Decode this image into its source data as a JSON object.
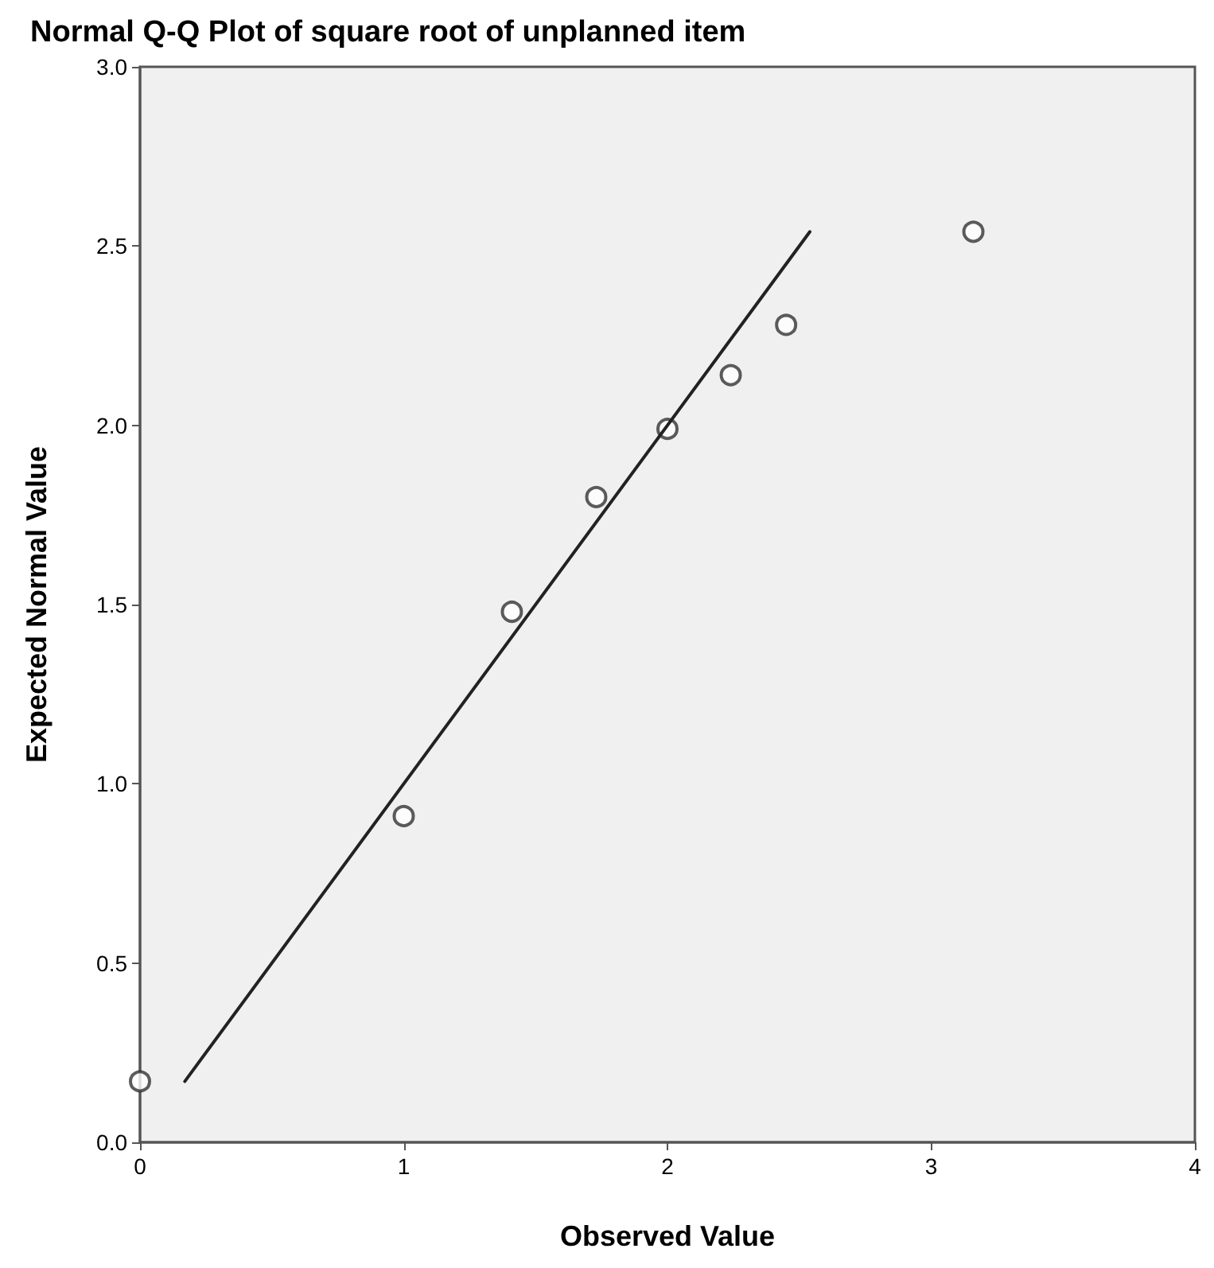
{
  "chart_data": {
    "type": "scatter",
    "title": "Normal Q-Q Plot of square root of unplanned item",
    "xlabel": "Observed Value",
    "ylabel": "Expected Normal Value",
    "xlim": [
      0,
      4
    ],
    "xticks": [
      0,
      1,
      2,
      3,
      4
    ],
    "ylim": [
      0,
      3
    ],
    "yticks": [
      {
        "value": 0,
        "label": "0.0"
      },
      {
        "value": 0.5,
        "label": "0.5"
      },
      {
        "value": 1,
        "label": "1.0"
      },
      {
        "value": 1.5,
        "label": "1.5"
      },
      {
        "value": 2,
        "label": "2.0"
      },
      {
        "value": 2.5,
        "label": "2.5"
      },
      {
        "value": 3,
        "label": "3.0"
      }
    ],
    "grid": false,
    "marker": "circle",
    "series": [
      {
        "color": "#333333",
        "x": [
          0,
          1,
          1.41,
          1.73,
          2,
          2.24,
          2.45,
          3.16
        ],
        "values": [
          0.17,
          0.91,
          1.48,
          1.8,
          1.99,
          2.14,
          2.28,
          2.54
        ]
      },
      {
        "type": "line",
        "color": "#222222",
        "marker": "none",
        "line_style": "solid",
        "x": [
          0.17,
          2.54
        ],
        "values": [
          0.17,
          2.54
        ]
      }
    ]
  }
}
